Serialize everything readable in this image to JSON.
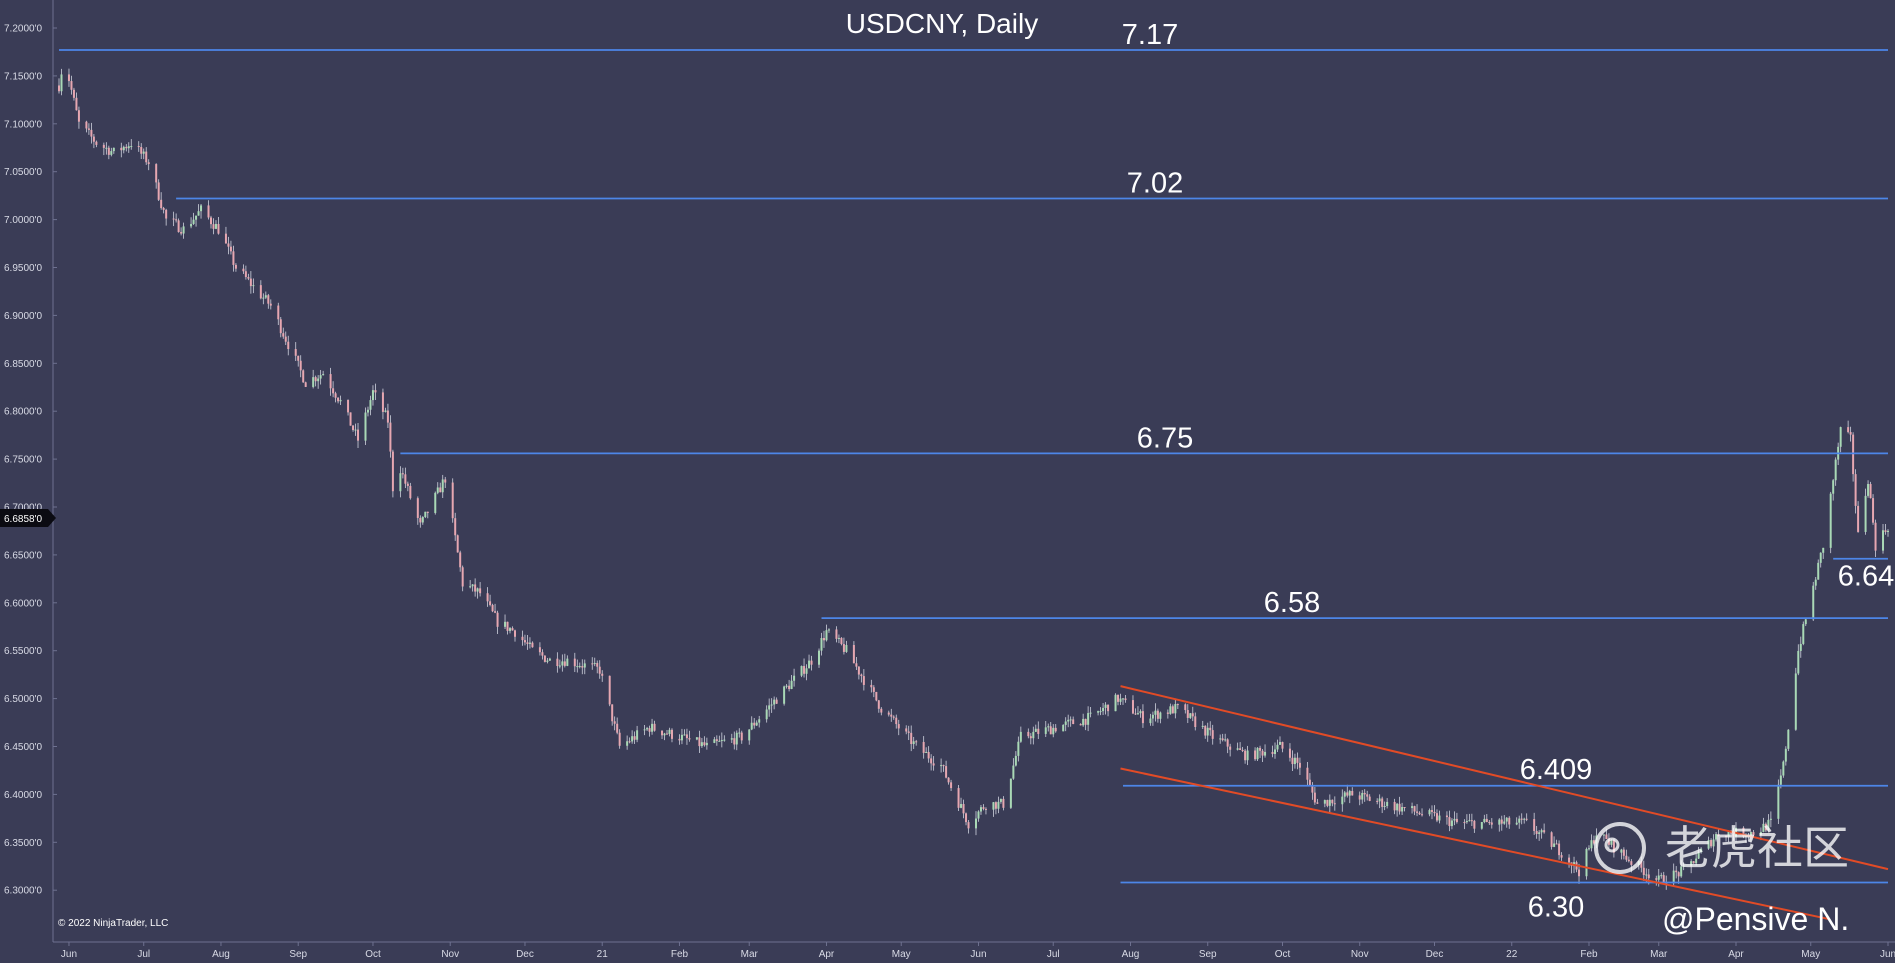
{
  "chart_data": {
    "type": "candlestick",
    "title": "USDCNY, Daily",
    "copyright": "© 2022 NinjaTrader, LLC",
    "watermark": "老虎社区",
    "signature": "@Pensive N.",
    "current_price_label": "6.6858'0",
    "ylim": [
      6.27,
      7.225
    ],
    "y_ticks": [
      "7.2000'0",
      "7.1500'0",
      "7.1000'0",
      "7.0500'0",
      "7.0000'0",
      "6.9500'0",
      "6.9000'0",
      "6.8500'0",
      "6.8000'0",
      "6.7500'0",
      "6.7000'0",
      "6.6500'0",
      "6.6000'0",
      "6.5500'0",
      "6.5000'0",
      "6.4500'0",
      "6.4000'0",
      "6.3500'0",
      "6.3000'0"
    ],
    "y_tick_values": [
      7.2,
      7.15,
      7.1,
      7.05,
      7.0,
      6.95,
      6.9,
      6.85,
      6.8,
      6.75,
      6.7,
      6.65,
      6.6,
      6.55,
      6.5,
      6.45,
      6.4,
      6.35,
      6.3
    ],
    "x_ticks": [
      "Jun",
      "Jul",
      "Aug",
      "Sep",
      "Oct",
      "Nov",
      "Dec",
      "21",
      "Feb",
      "Mar",
      "Apr",
      "May",
      "Jun",
      "Jul",
      "Aug",
      "Sep",
      "Oct",
      "Nov",
      "Dec",
      "22",
      "Feb",
      "Mar",
      "Apr",
      "May",
      "Jun"
    ],
    "x_range": [
      "2020-05-28",
      "2022-06-01"
    ],
    "x_tick_dates": [
      "2020-06-01",
      "2020-07-01",
      "2020-08-01",
      "2020-09-01",
      "2020-10-01",
      "2020-11-01",
      "2020-12-01",
      "2021-01-01",
      "2021-02-01",
      "2021-03-01",
      "2021-04-01",
      "2021-05-01",
      "2021-06-01",
      "2021-07-01",
      "2021-08-01",
      "2021-09-01",
      "2021-10-01",
      "2021-11-01",
      "2021-12-01",
      "2022-01-01",
      "2022-02-01",
      "2022-03-01",
      "2022-04-01",
      "2022-05-01",
      "2022-06-01"
    ],
    "horizontal_levels": [
      {
        "label": "7.17",
        "value": 7.177,
        "from": "2020-05-28",
        "to": "2022-06-01"
      },
      {
        "label": "7.02",
        "value": 7.022,
        "from": "2020-07-14",
        "to": "2022-06-01"
      },
      {
        "label": "6.75",
        "value": 6.756,
        "from": "2020-10-12",
        "to": "2022-06-01"
      },
      {
        "label": "6.58",
        "value": 6.584,
        "from": "2021-03-30",
        "to": "2022-06-01"
      },
      {
        "label": "6.409",
        "value": 6.409,
        "from": "2021-07-29",
        "to": "2022-06-01"
      },
      {
        "label": "6.30",
        "value": 6.308,
        "from": "2021-07-28",
        "to": "2022-06-01"
      },
      {
        "label": "6.64",
        "value": 6.646,
        "from": "2022-05-10",
        "to": "2022-06-01"
      }
    ],
    "channel_lines": [
      {
        "from": [
          "2021-07-28",
          6.513
        ],
        "to": [
          "2022-06-01",
          6.322
        ]
      },
      {
        "from": [
          "2021-07-28",
          6.427
        ],
        "to": [
          "2022-05-08",
          6.27
        ]
      }
    ],
    "colors": {
      "background": "#3a3c56",
      "level_line": "#4d86e8",
      "channel_line": "#e24b26",
      "bull": "#a9d9b6",
      "bear": "#e6a7b1",
      "wick": "#cfd2de",
      "text": "#ffffff"
    },
    "price_path": [
      [
        "2020-05-28",
        7.14
      ],
      [
        "2020-05-30",
        7.17
      ],
      [
        "2020-06-05",
        7.1
      ],
      [
        "2020-06-12",
        7.08
      ],
      [
        "2020-06-19",
        7.07
      ],
      [
        "2020-06-26",
        7.08
      ],
      [
        "2020-07-03",
        7.06
      ],
      [
        "2020-07-10",
        7.0
      ],
      [
        "2020-07-17",
        6.99
      ],
      [
        "2020-07-24",
        7.01
      ],
      [
        "2020-07-31",
        6.99
      ],
      [
        "2020-08-07",
        6.95
      ],
      [
        "2020-08-14",
        6.93
      ],
      [
        "2020-08-21",
        6.91
      ],
      [
        "2020-08-28",
        6.87
      ],
      [
        "2020-09-04",
        6.83
      ],
      [
        "2020-09-11",
        6.84
      ],
      [
        "2020-09-18",
        6.81
      ],
      [
        "2020-09-25",
        6.77
      ],
      [
        "2020-10-01",
        6.82
      ],
      [
        "2020-10-07",
        6.79
      ],
      [
        "2020-10-09",
        6.72
      ],
      [
        "2020-10-12",
        6.74
      ],
      [
        "2020-10-20",
        6.68
      ],
      [
        "2020-10-30",
        6.73
      ],
      [
        "2020-11-06",
        6.62
      ],
      [
        "2020-11-13",
        6.61
      ],
      [
        "2020-11-20",
        6.58
      ],
      [
        "2020-11-27",
        6.57
      ],
      [
        "2020-12-04",
        6.55
      ],
      [
        "2020-12-11",
        6.54
      ],
      [
        "2020-12-18",
        6.54
      ],
      [
        "2020-12-31",
        6.53
      ],
      [
        "2021-01-08",
        6.45
      ],
      [
        "2021-01-20",
        6.47
      ],
      [
        "2021-02-01",
        6.46
      ],
      [
        "2021-02-12",
        6.45
      ],
      [
        "2021-02-26",
        6.46
      ],
      [
        "2021-03-12",
        6.5
      ],
      [
        "2021-03-26",
        6.54
      ],
      [
        "2021-04-01",
        6.57
      ],
      [
        "2021-04-09",
        6.55
      ],
      [
        "2021-04-23",
        6.49
      ],
      [
        "2021-05-07",
        6.45
      ],
      [
        "2021-05-17",
        6.43
      ],
      [
        "2021-05-28",
        6.37
      ],
      [
        "2021-06-04",
        6.39
      ],
      [
        "2021-06-11",
        6.39
      ],
      [
        "2021-06-18",
        6.46
      ],
      [
        "2021-07-02",
        6.47
      ],
      [
        "2021-07-16",
        6.48
      ],
      [
        "2021-07-27",
        6.5
      ],
      [
        "2021-08-06",
        6.48
      ],
      [
        "2021-08-20",
        6.49
      ],
      [
        "2021-09-03",
        6.46
      ],
      [
        "2021-09-17",
        6.44
      ],
      [
        "2021-09-30",
        6.45
      ],
      [
        "2021-10-08",
        6.43
      ],
      [
        "2021-10-15",
        6.39
      ],
      [
        "2021-10-29",
        6.4
      ],
      [
        "2021-11-12",
        6.39
      ],
      [
        "2021-11-26",
        6.38
      ],
      [
        "2021-12-10",
        6.37
      ],
      [
        "2021-12-24",
        6.37
      ],
      [
        "2022-01-07",
        6.37
      ],
      [
        "2022-01-21",
        6.34
      ],
      [
        "2022-01-28",
        6.32
      ],
      [
        "2022-02-04",
        6.36
      ],
      [
        "2022-02-18",
        6.33
      ],
      [
        "2022-03-01",
        6.31
      ],
      [
        "2022-03-11",
        6.32
      ],
      [
        "2022-03-25",
        6.36
      ],
      [
        "2022-04-08",
        6.36
      ],
      [
        "2022-04-15",
        6.37
      ],
      [
        "2022-04-20",
        6.43
      ],
      [
        "2022-04-26",
        6.55
      ],
      [
        "2022-05-06",
        6.66
      ],
      [
        "2022-05-13",
        6.78
      ],
      [
        "2022-05-17",
        6.77
      ],
      [
        "2022-05-20",
        6.67
      ],
      [
        "2022-05-24",
        6.73
      ],
      [
        "2022-05-27",
        6.66
      ],
      [
        "2022-06-01",
        6.68
      ]
    ]
  }
}
